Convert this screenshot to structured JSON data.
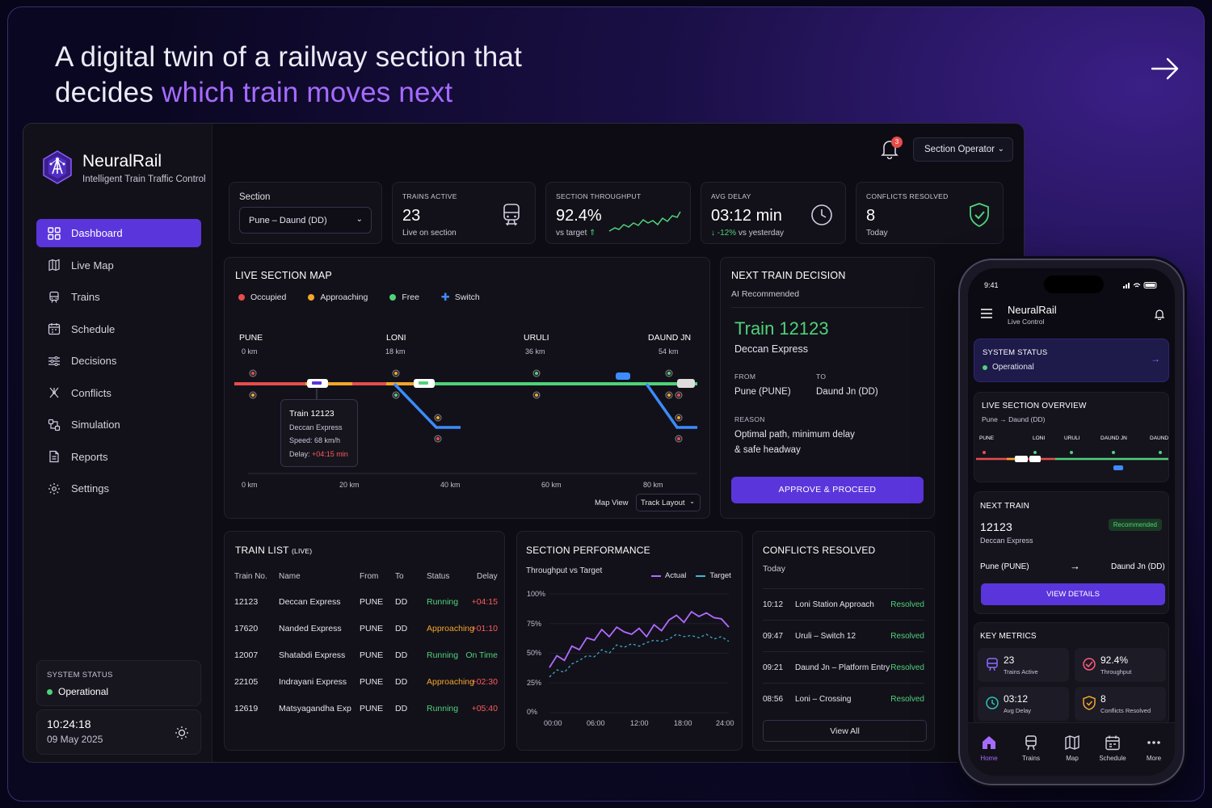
{
  "headline": {
    "line1": "A digital twin of a railway section that",
    "line2_plain": "decides ",
    "line2_accent": "which train moves next"
  },
  "brand": {
    "name": "NeuralRail",
    "tagline": "Intelligent Train Traffic Control"
  },
  "sidebar": {
    "items": [
      {
        "label": "Dashboard",
        "icon": "dashboard-icon",
        "active": true
      },
      {
        "label": "Live Map",
        "icon": "map-icon"
      },
      {
        "label": "Trains",
        "icon": "train-icon"
      },
      {
        "label": "Schedule",
        "icon": "calendar-icon"
      },
      {
        "label": "Decisions",
        "icon": "decisions-icon"
      },
      {
        "label": "Conflicts",
        "icon": "conflicts-icon"
      },
      {
        "label": "Simulation",
        "icon": "simulation-icon"
      },
      {
        "label": "Reports",
        "icon": "reports-icon"
      },
      {
        "label": "Settings",
        "icon": "settings-icon"
      }
    ],
    "system_status": {
      "title": "SYSTEM STATUS",
      "value": "Operational"
    },
    "clock": {
      "time": "10:24:18",
      "date": "09 May 2025"
    }
  },
  "topbar": {
    "notifications": "3",
    "operator": "Section Operator"
  },
  "section_select": {
    "label": "Section",
    "value": "Pune – Daund (DD)"
  },
  "kpis": [
    {
      "label": "TRAINS ACTIVE",
      "value": "23",
      "sub": "Live on section"
    },
    {
      "label": "SECTION THROUGHPUT",
      "value": "92.4%",
      "sub": "vs target"
    },
    {
      "label": "AVG DELAY",
      "value": "03:12 min",
      "sub_change": "-12%",
      "sub": "vs yesterday"
    },
    {
      "label": "CONFLICTS RESOLVED",
      "value": "8",
      "sub": "Today"
    }
  ],
  "live_map": {
    "title": "LIVE SECTION MAP",
    "legend": [
      "Occupied",
      "Approaching",
      "Free",
      "Switch"
    ],
    "stations": [
      {
        "name": "PUNE",
        "km": "0 km"
      },
      {
        "name": "LONI",
        "km": "18 km"
      },
      {
        "name": "URULI",
        "km": "36 km"
      },
      {
        "name": "DAUND JN",
        "km": "54 km"
      }
    ],
    "axis": [
      "0 km",
      "20 km",
      "40 km",
      "60 km",
      "80 km"
    ],
    "tooltip": {
      "title": "Train 12123",
      "name": "Deccan Express",
      "speed": "Speed: 68 km/h",
      "delay_label": "Delay: ",
      "delay": "+04:15 min"
    },
    "map_view": "Map View",
    "layout": "Track Layout"
  },
  "decision": {
    "title": "NEXT TRAIN DECISION",
    "subtitle": "AI Recommended",
    "train": "Train 12123",
    "name": "Deccan Express",
    "from_label": "FROM",
    "from": "Pune (PUNE)",
    "to_label": "TO",
    "to": "Daund Jn (DD)",
    "reason_label": "REASON",
    "reason1": "Optimal path, minimum delay",
    "reason2": "& safe headway",
    "button": "APPROVE & PROCEED"
  },
  "train_list": {
    "title": "TRAIN LIST",
    "title_suffix": "(LIVE)",
    "headers": [
      "Train No.",
      "Name",
      "From",
      "To",
      "Status",
      "Delay"
    ],
    "rows": [
      [
        "12123",
        "Deccan Express",
        "PUNE",
        "DD",
        "Running",
        "+04:15"
      ],
      [
        "17620",
        "Nanded Express",
        "PUNE",
        "DD",
        "Approaching",
        "+01:10"
      ],
      [
        "12007",
        "Shatabdi Express",
        "PUNE",
        "DD",
        "Running",
        "On Time"
      ],
      [
        "22105",
        "Indrayani Express",
        "PUNE",
        "DD",
        "Approaching",
        "+02:30"
      ],
      [
        "12619",
        "Matsyagandha Exp",
        "PUNE",
        "DD",
        "Running",
        "+05:40"
      ]
    ]
  },
  "performance": {
    "title": "SECTION PERFORMANCE",
    "subtitle": "Throughput vs Target",
    "legend_actual": "Actual",
    "legend_target": "Target",
    "y_labels": [
      "100%",
      "75%",
      "50%",
      "25%",
      "0%"
    ],
    "x_labels": [
      "00:00",
      "06:00",
      "12:00",
      "18:00",
      "24:00"
    ]
  },
  "chart_data": {
    "type": "line",
    "title": "Throughput vs Target",
    "x": [
      0,
      1,
      2,
      3,
      4,
      5,
      6,
      7,
      8,
      9,
      10,
      11,
      12,
      13,
      14,
      15,
      16,
      17,
      18,
      19,
      20,
      21,
      22,
      23,
      24
    ],
    "ylim": [
      0,
      100
    ],
    "series": [
      {
        "name": "Actual",
        "values": [
          38,
          48,
          44,
          56,
          53,
          63,
          61,
          70,
          64,
          72,
          68,
          66,
          71,
          64,
          74,
          69,
          78,
          82,
          76,
          85,
          81,
          84,
          80,
          79,
          72
        ]
      },
      {
        "name": "Target",
        "values": [
          30,
          36,
          34,
          41,
          44,
          48,
          47,
          53,
          50,
          57,
          55,
          58,
          56,
          59,
          61,
          60,
          62,
          66,
          64,
          65,
          63,
          66,
          62,
          64,
          60
        ]
      }
    ]
  },
  "conflicts": {
    "title": "CONFLICTS RESOLVED",
    "subtitle": "Today",
    "rows": [
      {
        "time": "10:12",
        "place": "Loni Station Approach",
        "status": "Resolved"
      },
      {
        "time": "09:47",
        "place": "Uruli – Switch 12",
        "status": "Resolved"
      },
      {
        "time": "09:21",
        "place": "Daund Jn – Platform Entry",
        "status": "Resolved"
      },
      {
        "time": "08:56",
        "place": "Loni – Crossing",
        "status": "Resolved"
      }
    ],
    "view_all": "View All"
  },
  "phone": {
    "time": "9:41",
    "app": "NeuralRail",
    "app_sub": "Live Control",
    "status_title": "SYSTEM STATUS",
    "status_value": "Operational",
    "overview_title": "LIVE SECTION OVERVIEW",
    "overview_sub": "Pune → Daund (DD)",
    "overview_stations": [
      "PUNE",
      "LONI",
      "URULI",
      "DAUND JN",
      "DAUND"
    ],
    "next_title": "NEXT TRAIN",
    "next_no": "12123",
    "next_name": "Deccan Express",
    "recommended": "Recommended",
    "next_from": "Pune (PUNE)",
    "next_to": "Daund Jn (DD)",
    "view_details": "VIEW DETAILS",
    "metrics_title": "KEY METRICS",
    "metrics": [
      {
        "value": "23",
        "label": "Trains Active"
      },
      {
        "value": "92.4%",
        "label": "Throughput"
      },
      {
        "value": "03:12",
        "label": "Avg Delay"
      },
      {
        "value": "8",
        "label": "Conflicts Resolved"
      }
    ],
    "tabs": [
      "Home",
      "Trains",
      "Map",
      "Schedule",
      "More"
    ]
  },
  "colors": {
    "accent": "#5b35dc",
    "accent_light": "#a56bff",
    "occupied": "#e74c4c",
    "approaching": "#f4a62a",
    "free": "#4fd27a",
    "switch": "#3d8bff"
  }
}
